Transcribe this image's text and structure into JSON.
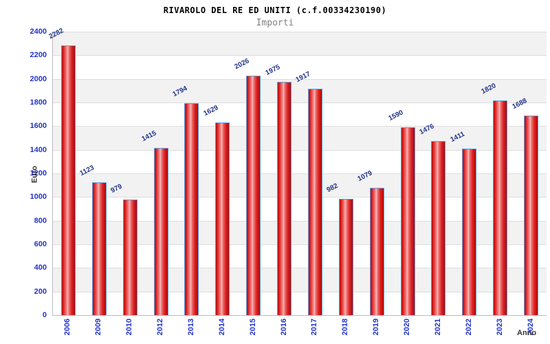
{
  "header": {
    "title": "RIVAROLO DEL RE ED UNITI (c.f.00334230190)",
    "subtitle": "Importi"
  },
  "axes": {
    "y_title": "Euro",
    "x_title": "Anno"
  },
  "chart_data": {
    "type": "bar",
    "title": "RIVAROLO DEL RE ED UNITI (c.f.00334230190)",
    "subtitle": "Importi",
    "xlabel": "Anno",
    "ylabel": "Euro",
    "categories": [
      "2006",
      "2009",
      "2010",
      "2012",
      "2013",
      "2014",
      "2015",
      "2016",
      "2017",
      "2018",
      "2019",
      "2020",
      "2021",
      "2022",
      "2023",
      "2024"
    ],
    "values": [
      2282,
      1123,
      979,
      1415,
      1794,
      1629,
      2026,
      1975,
      1917,
      982,
      1079,
      1590,
      1476,
      1411,
      1820,
      1688
    ],
    "ylim": [
      0,
      2400
    ],
    "ytick_step": 200,
    "yticks": [
      0,
      200,
      400,
      600,
      800,
      1000,
      1200,
      1400,
      1600,
      1800,
      2000,
      2200,
      2400
    ],
    "grid": "horizontal, alternating shaded bands",
    "legend": "none",
    "colors": {
      "bar_red_dark": "#b40f0f",
      "bar_red": "#dd1f1f",
      "bar_highlight": "#f8b8b8",
      "bar_border": "#5b9ce0",
      "tick_label_blue": "#2233cc",
      "value_label_navy": "#223388",
      "band_gray": "#f2f2f2",
      "gridline": "#dddddd",
      "axis_line": "#bbbbbb",
      "title_color": "#000000",
      "subtitle_color": "#7f7f7f",
      "axis_title_color": "#333333"
    }
  }
}
